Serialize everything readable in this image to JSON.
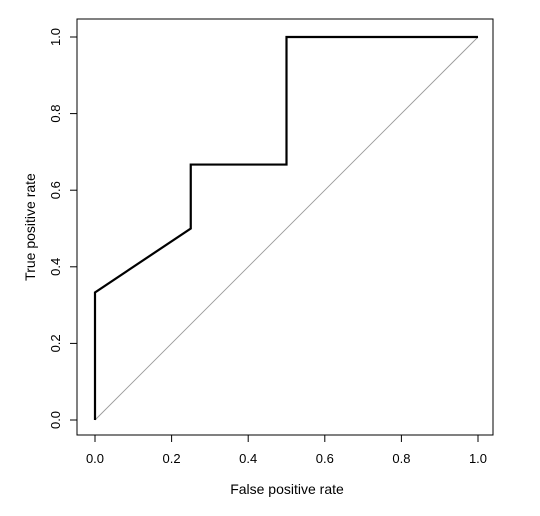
{
  "chart_data": {
    "type": "line",
    "xlabel": "False positive rate",
    "ylabel": "True positive rate",
    "xlim": [
      0,
      1
    ],
    "ylim": [
      0,
      1
    ],
    "xticks": [
      "0.0",
      "0.2",
      "0.4",
      "0.6",
      "0.8",
      "1.0"
    ],
    "yticks": [
      "0.0",
      "0.2",
      "0.4",
      "0.6",
      "0.8",
      "1.0"
    ],
    "grid": false,
    "series": [
      {
        "role": "roc-curve",
        "color": "#000000",
        "x": [
          0,
          0,
          0.25,
          0.25,
          0.5,
          0.5,
          1.0
        ],
        "y": [
          0,
          0.333,
          0.5,
          0.667,
          0.667,
          1.0,
          1.0
        ]
      },
      {
        "role": "diagonal-reference",
        "color": "#9a9a9a",
        "x": [
          0,
          1
        ],
        "y": [
          0,
          1
        ]
      }
    ]
  }
}
